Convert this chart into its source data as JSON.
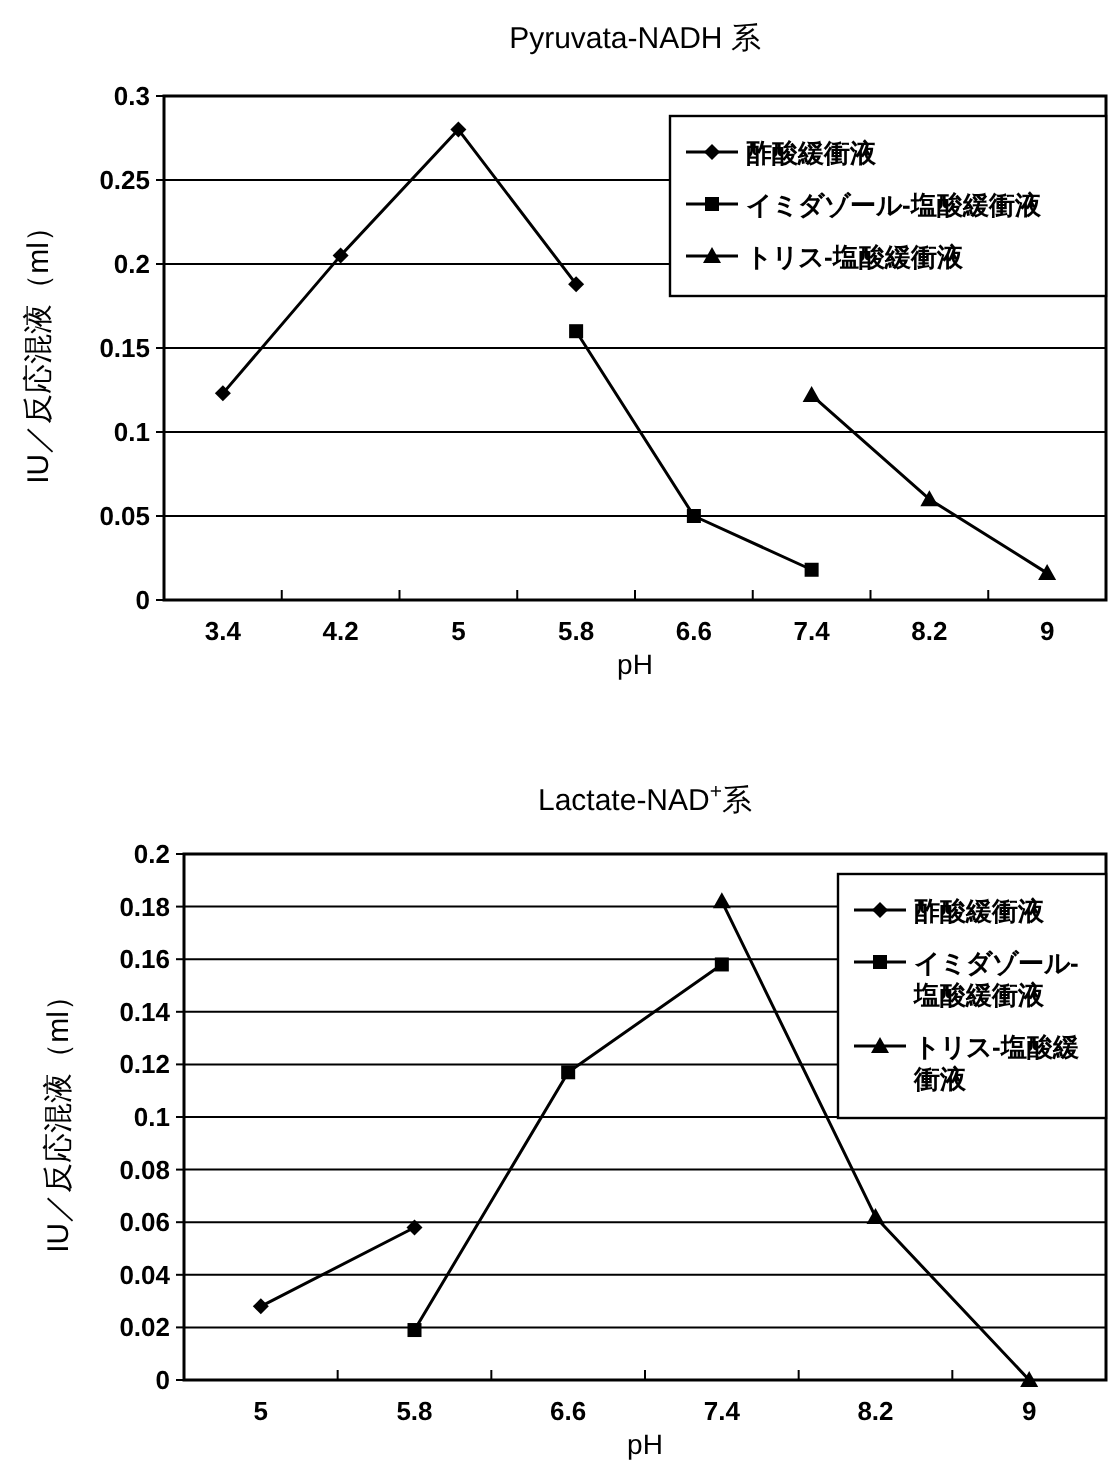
{
  "chart_data": [
    {
      "type": "line",
      "title": "Pyruvata-NADH 系",
      "xlabel": "pH",
      "ylabel": "IU／反応混液（ml）",
      "categories": [
        "3.4",
        "4.2",
        "5",
        "5.8",
        "6.6",
        "7.4",
        "8.2",
        "9"
      ],
      "ylim": [
        0,
        0.3
      ],
      "yticks": [
        0,
        0.05,
        0.1,
        0.15,
        0.2,
        0.25,
        0.3
      ],
      "grid": "y",
      "legend": "top right",
      "series": [
        {
          "name": "酢酸緩衝液",
          "color": "#000000",
          "marker": "diamond",
          "values": [
            0.123,
            0.205,
            0.28,
            0.188,
            null,
            null,
            null,
            null
          ]
        },
        {
          "name": "イミダゾール-塩酸緩衝液",
          "color": "#000000",
          "marker": "square",
          "values": [
            null,
            null,
            null,
            0.16,
            0.05,
            0.018,
            null,
            null
          ]
        },
        {
          "name": "トリス-塩酸緩衝液",
          "color": "#000000",
          "marker": "triangle",
          "values": [
            null,
            null,
            null,
            null,
            null,
            0.122,
            0.06,
            0.016
          ]
        }
      ]
    },
    {
      "type": "line",
      "title": "Lactate-NAD$^{+}$系",
      "xlabel": "pH",
      "ylabel": "IU／反応混液（ml）",
      "categories": [
        "5",
        "5.8",
        "6.6",
        "7.4",
        "8.2",
        "9"
      ],
      "ylim": [
        0,
        0.2
      ],
      "yticks": [
        0,
        0.02,
        0.04,
        0.06,
        0.08,
        0.1,
        0.12,
        0.14,
        0.16,
        0.18,
        0.2
      ],
      "grid": "y",
      "legend": "top right",
      "series": [
        {
          "name": "酢酸緩衝液",
          "color": "#000000",
          "marker": "diamond",
          "values": [
            0.028,
            0.058,
            null,
            null,
            null,
            null
          ]
        },
        {
          "name": "イミダゾール-塩酸緩衝液",
          "color": "#000000",
          "marker": "square",
          "values": [
            null,
            0.019,
            0.117,
            0.158,
            null,
            null
          ]
        },
        {
          "name": "トリス-塩酸緩衝液",
          "color": "#000000",
          "marker": "triangle",
          "values": [
            null,
            null,
            null,
            0.182,
            0.062,
            0
          ]
        }
      ]
    }
  ]
}
